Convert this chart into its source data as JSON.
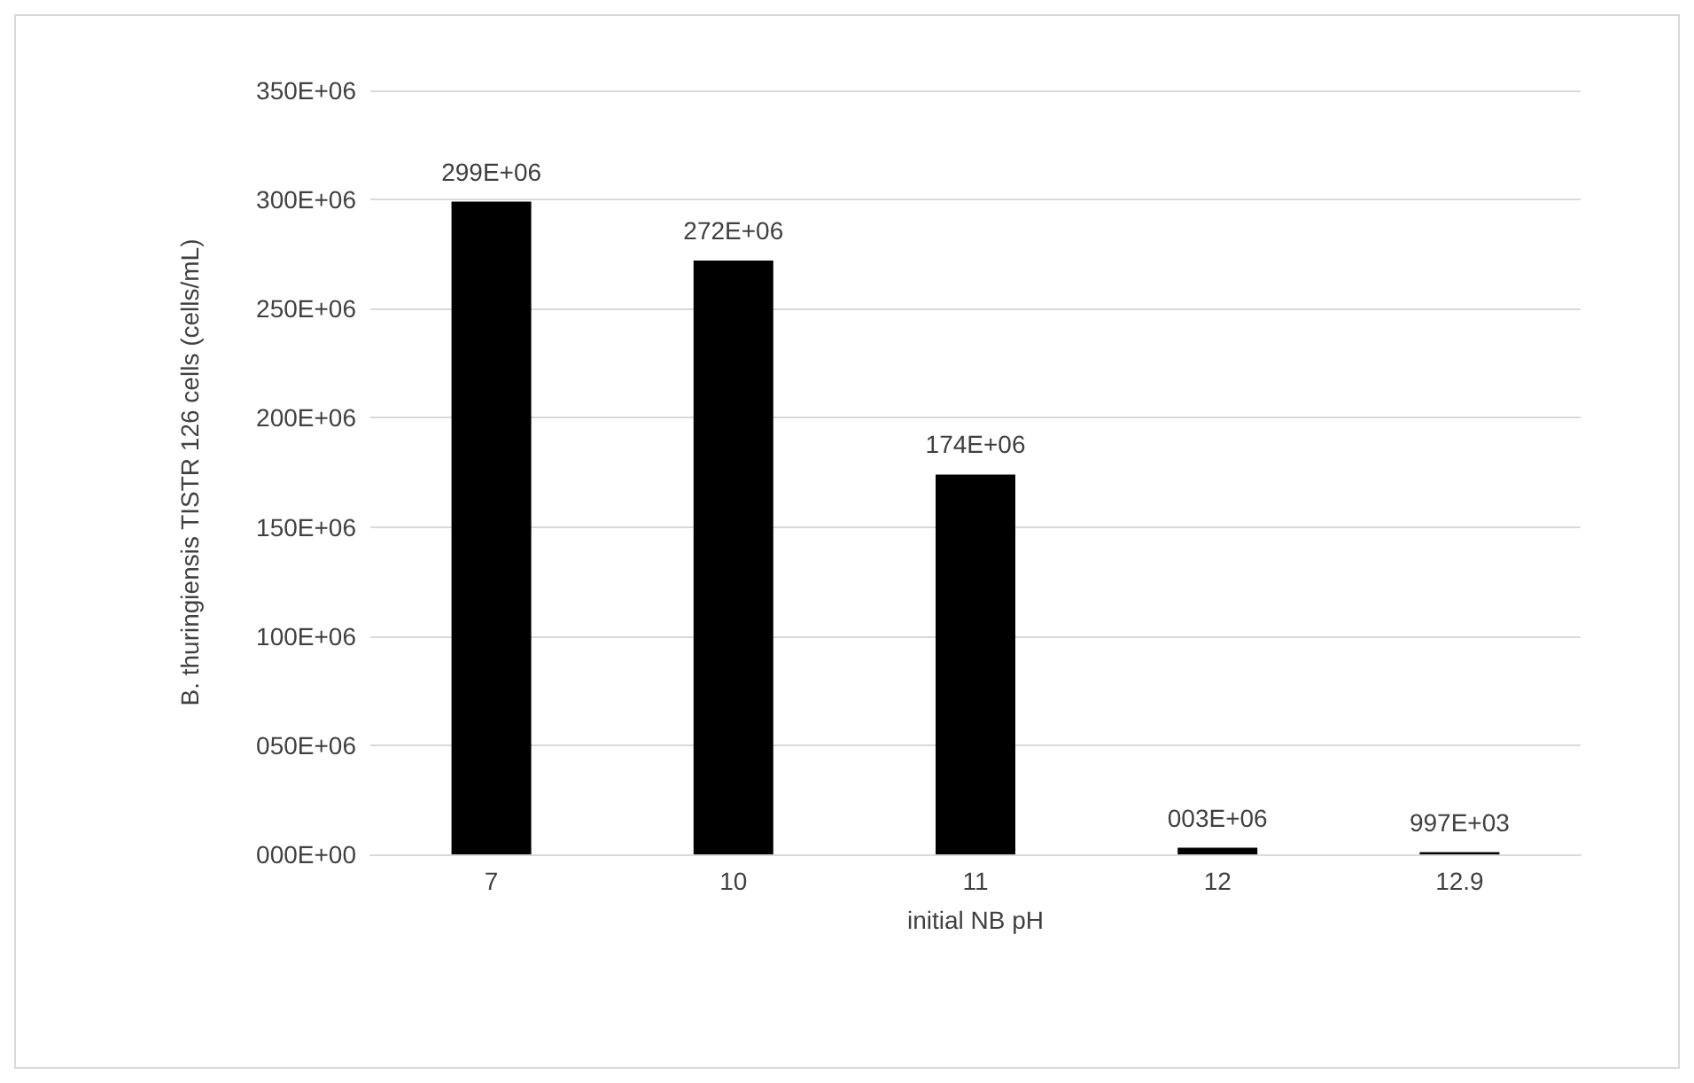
{
  "chart_data": {
    "type": "bar",
    "xlabel": "initial NB pH",
    "ylabel": "B. thuringiensis TISTR 126 cells (cells/mL)",
    "categories": [
      "7",
      "10",
      "11",
      "12",
      "12.9"
    ],
    "values": [
      299000000,
      272000000,
      174000000,
      3000000,
      997000
    ],
    "value_labels": [
      "299E+06",
      "272E+06",
      "174E+06",
      "003E+06",
      "997E+03"
    ],
    "color": "#000000",
    "ylim": [
      0,
      350000000
    ],
    "yticks": [
      {
        "value": 0,
        "label": "000E+00"
      },
      {
        "value": 50000000,
        "label": "050E+06"
      },
      {
        "value": 100000000,
        "label": "100E+06"
      },
      {
        "value": 150000000,
        "label": "150E+06"
      },
      {
        "value": 200000000,
        "label": "200E+06"
      },
      {
        "value": 250000000,
        "label": "250E+06"
      },
      {
        "value": 300000000,
        "label": "300E+06"
      },
      {
        "value": 350000000,
        "label": "350E+06"
      }
    ],
    "grid": "y"
  }
}
